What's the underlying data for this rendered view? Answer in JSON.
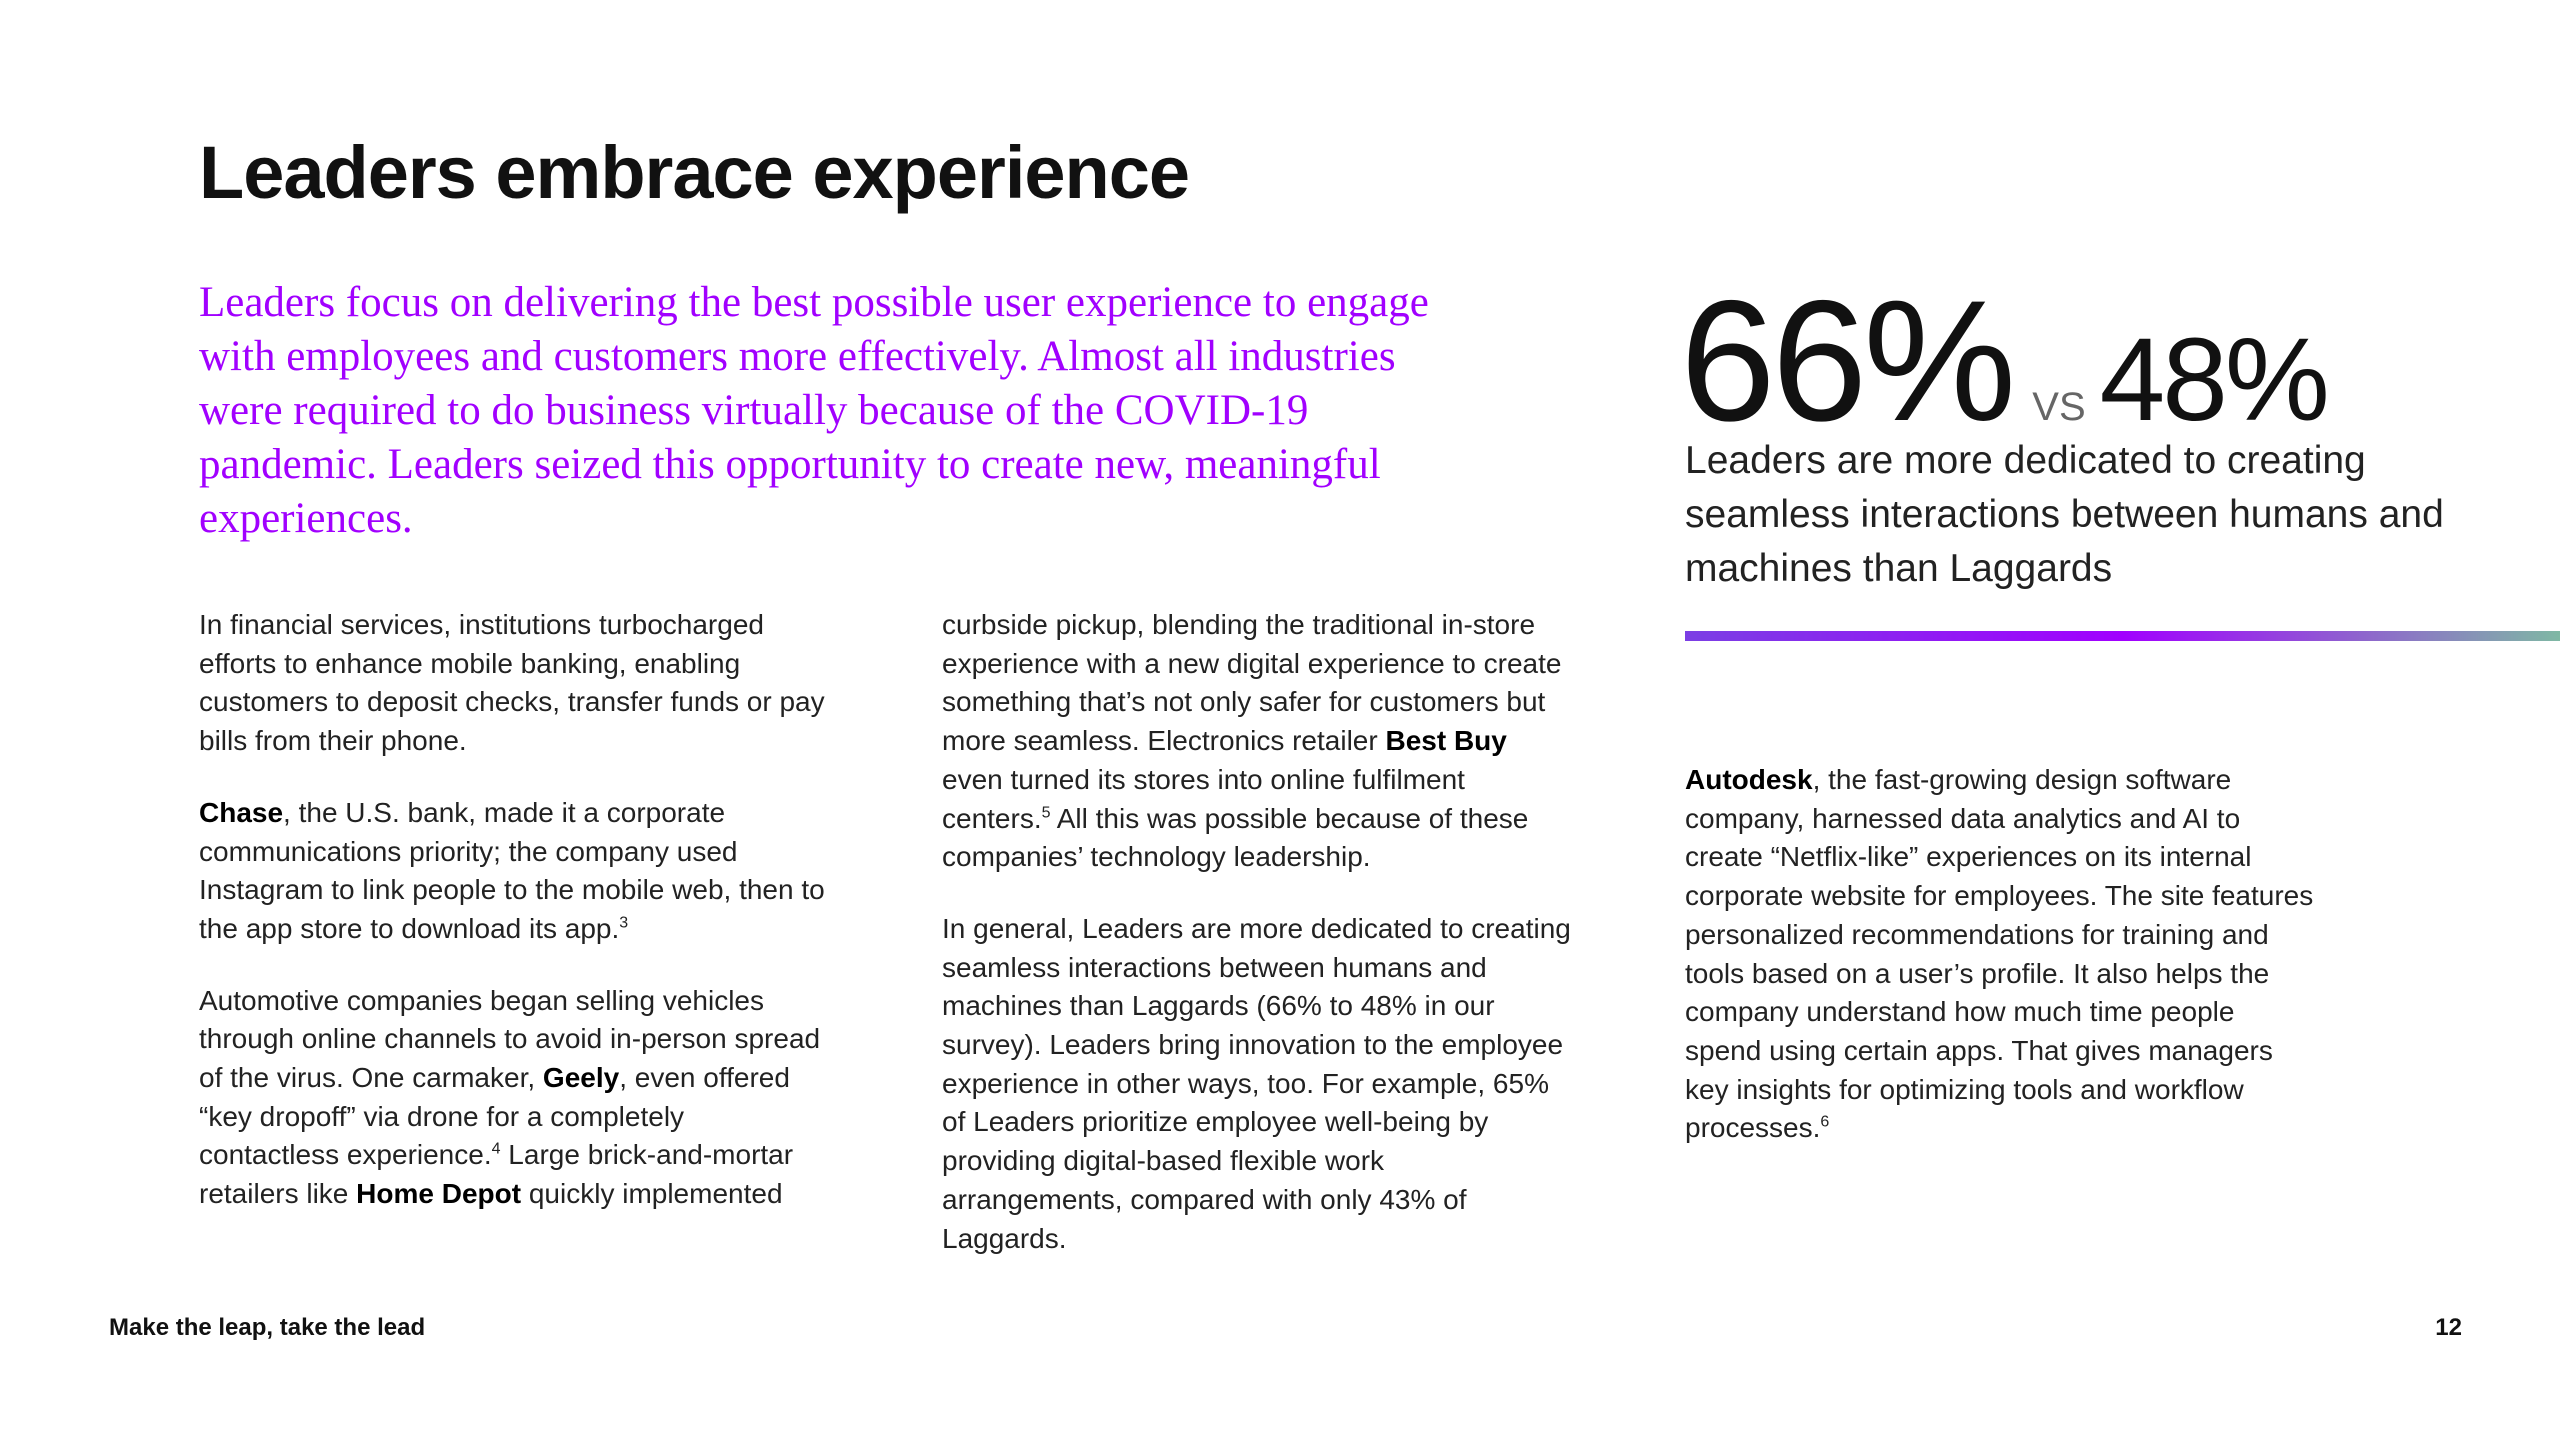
{
  "header": {
    "title": "Leaders embrace experience"
  },
  "lead": "Leaders focus on delivering the best possible user experience to engage with employees and customers more effectively. Almost all industries were required to do business virtually because of the COVID-19 pandemic. Leaders seized this opportunity to create new, meaningful experiences.",
  "columns": [
    {
      "paragraphs": [
        [
          "In financial services, institutions turbocharged efforts to enhance mobile banking, enabling customers to deposit checks, transfer funds or pay bills from their phone."
        ],
        [
          {
            "b": "Chase"
          },
          ", the U.S. bank, made it a corporate communications priority; the company used Instagram to link people to the mobile web, then to the app store to download its app.",
          {
            "sup": "3"
          }
        ],
        [
          "Automotive companies began selling vehicles through online channels to avoid in-person spread of the virus. One carmaker, ",
          {
            "b": "Geely"
          },
          ", even offered “key dropoff” via drone for a completely contactless experience.",
          {
            "sup": "4"
          },
          " Large brick-and-mortar retailers like ",
          {
            "b": "Home Depot"
          },
          " quickly implemented"
        ]
      ]
    },
    {
      "paragraphs": [
        [
          "curbside pickup, blending the traditional in-store experience with a new digital experience to create something that’s not only safer for customers but more seamless. Electronics retailer ",
          {
            "b": "Best Buy"
          },
          " even turned its stores into online fulfilment centers.",
          {
            "sup": "5"
          },
          " All this was possible because of these companies’ technology leadership."
        ],
        [
          "In general, Leaders are more dedicated to creating seamless interactions between humans and machines than Laggards (66% to 48% in our survey). Leaders bring innovation to the employee experience in other ways, too. For example, 65% of Leaders prioritize employee well-being by providing digital-based flexible work arrangements, compared with only 43% of Laggards."
        ]
      ]
    },
    {
      "paragraphs": [
        [
          {
            "b": "Autodesk"
          },
          ", the fast-growing design software company, harnessed data analytics and AI to create “Netflix-like” experiences on its internal corporate website for employees. The site features personalized recommendations for training and tools based on a user’s profile. It also helps the company understand how much time people spend using certain apps. That gives managers key insights for optimizing tools and workflow processes.",
          {
            "sup": "6"
          }
        ]
      ]
    }
  ],
  "stat": {
    "left": "66%",
    "versus": "VS",
    "right": "48%",
    "caption": "Leaders are more dedicated to creating seamless interactions between humans and machines than Laggards"
  },
  "footer": {
    "left": "Make the leap, take the lead",
    "page": "12"
  }
}
